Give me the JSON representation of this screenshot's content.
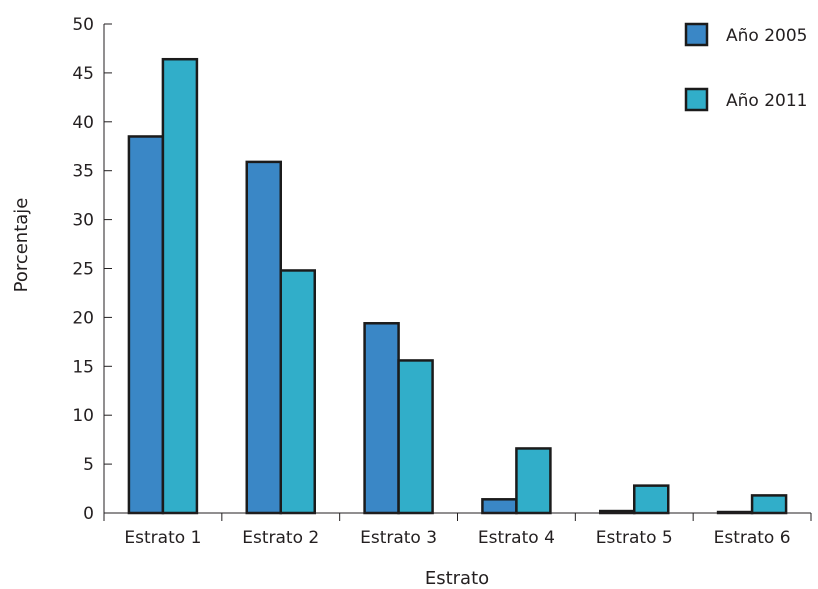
{
  "chart_data": {
    "type": "bar",
    "xlabel": "Estrato",
    "ylabel": "Porcentaje",
    "ylim": [
      0,
      50
    ],
    "yticks": [
      0,
      5,
      10,
      15,
      20,
      25,
      30,
      35,
      40,
      45,
      50
    ],
    "categories": [
      "Estrato 1",
      "Estrato 2",
      "Estrato 3",
      "Estrato 4",
      "Estrato 5",
      "Estrato 6"
    ],
    "series": [
      {
        "name": "Año 2005",
        "color": "#3a87c6",
        "values": [
          38.5,
          35.9,
          19.4,
          1.4,
          0.2,
          0.1
        ]
      },
      {
        "name": "Año 2011",
        "color": "#31aec9",
        "values": [
          46.4,
          24.8,
          15.6,
          6.6,
          2.8,
          1.8
        ]
      }
    ],
    "grid": false,
    "legend_position": "top-right"
  }
}
